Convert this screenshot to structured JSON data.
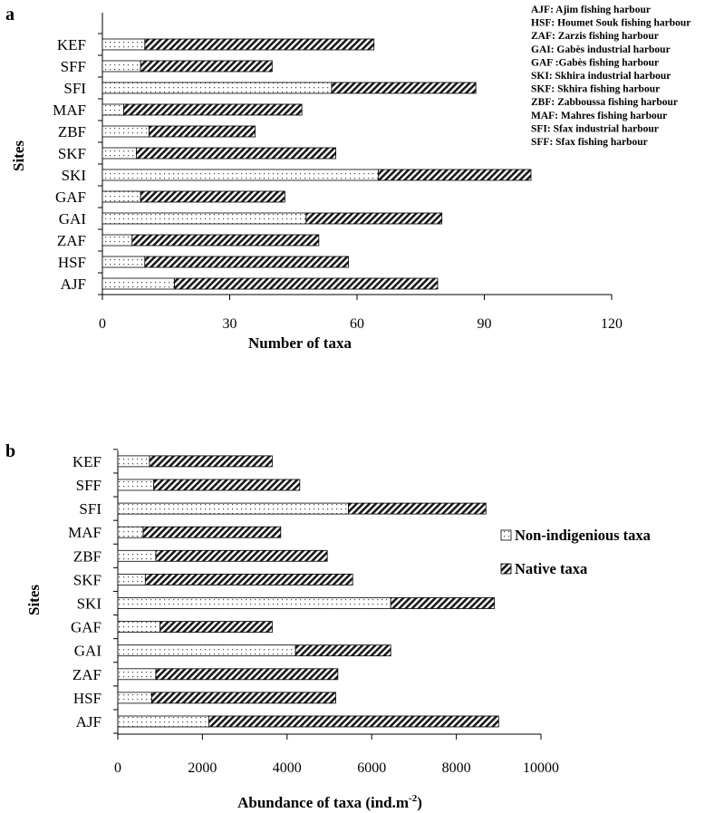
{
  "chart_data": [
    {
      "panel_label": "a",
      "type": "bar",
      "orientation": "horizontal",
      "stacked": true,
      "categories": [
        "AJF",
        "HSF",
        "ZAF",
        "GAI",
        "GAF",
        "SKI",
        "SKF",
        "ZBF",
        "MAF",
        "SFI",
        "SFF",
        "KEF"
      ],
      "series": [
        {
          "name": "Non-indigenious taxa",
          "pattern": "dotted",
          "values": [
            17,
            10,
            7,
            48,
            9,
            65,
            8,
            11,
            5,
            54,
            9,
            10
          ]
        },
        {
          "name": "Native taxa",
          "pattern": "hatched",
          "values": [
            62,
            48,
            44,
            32,
            34,
            36,
            47,
            25,
            42,
            34,
            31,
            54
          ]
        }
      ],
      "xlabel": "Number of taxa",
      "ylabel": "Sites",
      "xlim": [
        0,
        120
      ],
      "xticks": [
        "0",
        "30",
        "60",
        "90",
        "120"
      ],
      "grid": false,
      "site_key": [
        "AJF: Ajim fishing harbour",
        "HSF: Houmet Souk fishing harbour",
        "ZAF: Zarzis fishing harbour",
        "GAI: Gabès industrial harbour",
        "GAF :Gabès fishing harbour",
        "SKI: Skhira industrial harbour",
        "SKF: Skhira fishing harbour",
        "ZBF: Zabboussa fishing harbour",
        "MAF: Mahres fishing harbour",
        "SFI: Sfax industrial harbour",
        "SFF: Sfax fishing harbour"
      ]
    },
    {
      "panel_label": "b",
      "type": "bar",
      "orientation": "horizontal",
      "stacked": true,
      "categories": [
        "AJF",
        "HSF",
        "ZAF",
        "GAI",
        "GAF",
        "SKI",
        "SKF",
        "ZBF",
        "MAF",
        "SFI",
        "SFF",
        "KEF"
      ],
      "series": [
        {
          "name": "Non-indigenious taxa",
          "pattern": "dotted",
          "values": [
            2150,
            800,
            900,
            4200,
            1000,
            6450,
            650,
            900,
            600,
            5450,
            850,
            750
          ]
        },
        {
          "name": "Native taxa",
          "pattern": "hatched",
          "values": [
            6850,
            4350,
            4300,
            2250,
            2650,
            2450,
            4900,
            4050,
            3250,
            3250,
            3450,
            2900
          ]
        }
      ],
      "xlabel_main": "Abundance of taxa (ind.m",
      "xlabel_sup": "-2",
      "xlabel_end": ")",
      "ylabel": "Sites",
      "xlim": [
        0,
        10000
      ],
      "xticks": [
        "0",
        "2000",
        "4000",
        "6000",
        "8000",
        "10000"
      ],
      "grid": false,
      "legend_placement": "right",
      "legend": [
        "Non-indigenious taxa",
        "Native taxa"
      ]
    }
  ]
}
